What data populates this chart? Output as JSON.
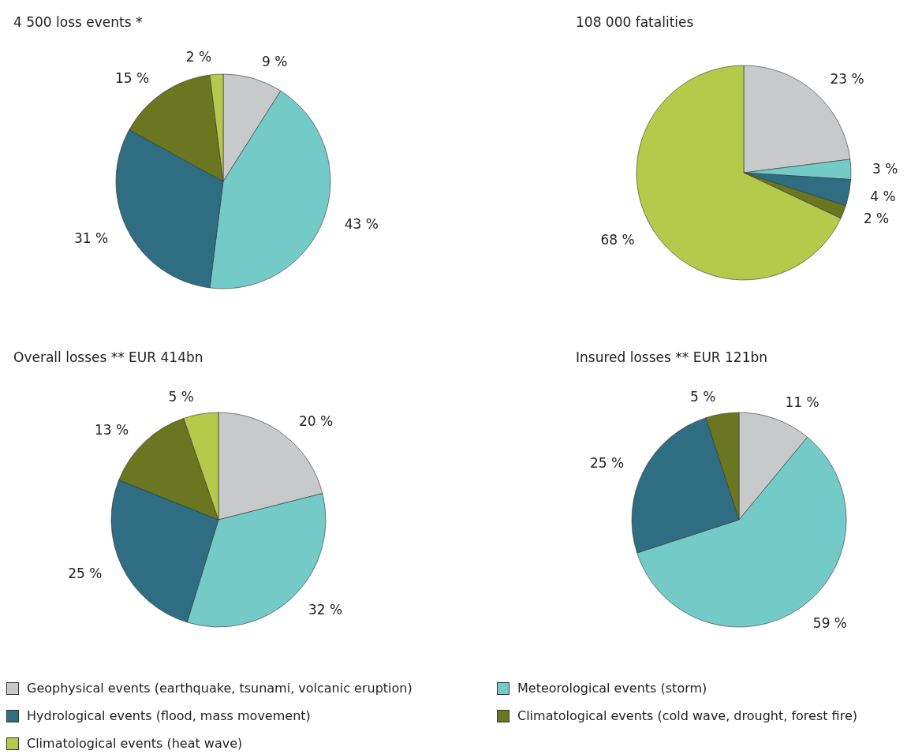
{
  "chart_data": [
    {
      "type": "pie",
      "title": "4 500 loss events *",
      "legend": "bottom",
      "categories": [
        "Geophysical events (earthquake, tsunami, volcanic eruption)",
        "Meteorological events (storm)",
        "Hydrological events (flood, mass movement)",
        "Climatological events (cold wave, drought, forest fire)",
        "Climatological events (heat wave)"
      ],
      "values": [
        9,
        43,
        31,
        15,
        2
      ],
      "value_labels": [
        "9 %",
        "43 %",
        "31 %",
        "15 %",
        "2 %"
      ],
      "colors": [
        "#c8c9cb",
        "#73cac6",
        "#2f6d82",
        "#6b7720",
        "#b5c94a"
      ]
    },
    {
      "type": "pie",
      "title": "108 000 fatalities",
      "categories": [
        null,
        null,
        null,
        null,
        null
      ],
      "values": [
        23,
        3,
        4,
        2,
        68
      ],
      "value_labels": [
        "23 %",
        "3 %",
        "4 %",
        "2 %",
        "68 %"
      ],
      "colors": [
        "#c8c9cb",
        "#73cac6",
        "#2f6d82",
        "#6b7720",
        "#b5c94a"
      ]
    },
    {
      "type": "pie",
      "title": "Overall losses ** EUR 414bn",
      "categories": [
        null,
        null,
        null,
        null,
        null
      ],
      "values": [
        20,
        32,
        25,
        13,
        5
      ],
      "value_labels": [
        "20 %",
        "32 %",
        "25 %",
        "13 %",
        "5 %"
      ],
      "colors": [
        "#c8c9cb",
        "#73cac6",
        "#2f6d82",
        "#6b7720",
        "#b5c94a"
      ]
    },
    {
      "type": "pie",
      "title": "Insured losses ** EUR 121bn",
      "categories": [
        null,
        null,
        null,
        null
      ],
      "values": [
        11,
        59,
        25,
        5
      ],
      "value_labels": [
        "11 %",
        "59 %",
        "25 %",
        "5 %"
      ],
      "colors": [
        "#c8c9cb",
        "#73cac6",
        "#2f6d82",
        "#6b7720"
      ]
    }
  ]
}
